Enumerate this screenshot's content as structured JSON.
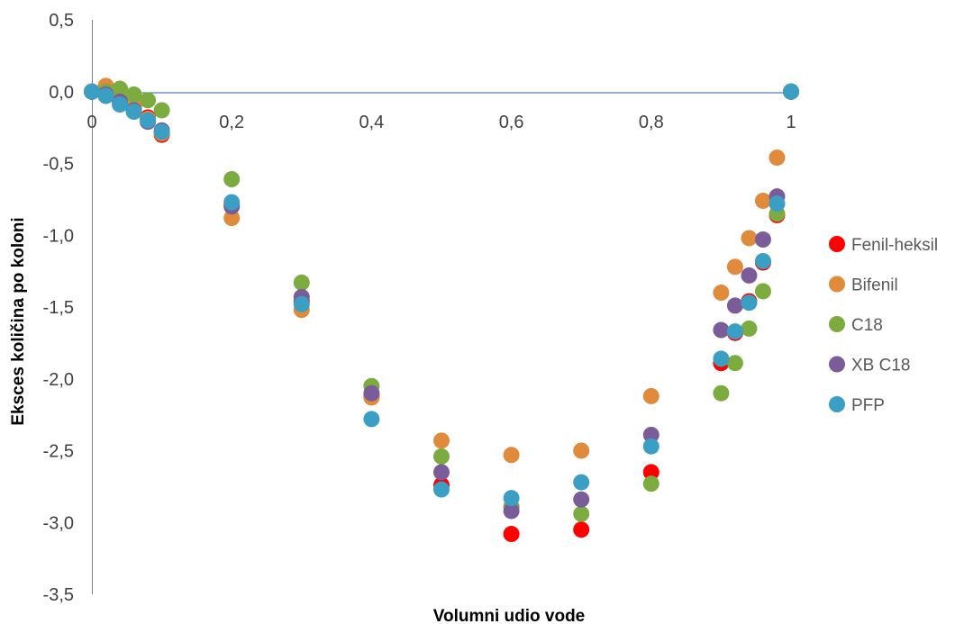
{
  "chart_data": {
    "type": "scatter",
    "title": "",
    "xlabel": "Volumni udio vode",
    "ylabel": "Eksces količina po koloni",
    "xlim": [
      0,
      1
    ],
    "ylim": [
      -3.5,
      0.5
    ],
    "x_ticks": [
      "0",
      "0,2",
      "0,4",
      "0,6",
      "0,8",
      "1"
    ],
    "y_ticks": [
      "0,5",
      "0,0",
      "-0,5",
      "-1,0",
      "-1,5",
      "-2,0",
      "-2,5",
      "-3,0",
      "-3,5"
    ],
    "legend_position": "right",
    "series": [
      {
        "name": "Fenil-heksil",
        "color": "#ff0000",
        "points": [
          [
            0,
            0
          ],
          [
            0.02,
            -0.02
          ],
          [
            0.04,
            -0.06
          ],
          [
            0.06,
            -0.11
          ],
          [
            0.08,
            -0.18
          ],
          [
            0.1,
            -0.3
          ],
          [
            0.2,
            -0.79
          ],
          [
            0.3,
            -1.46
          ],
          [
            0.4,
            -2.12
          ],
          [
            0.5,
            -2.74
          ],
          [
            0.6,
            -3.08
          ],
          [
            0.7,
            -3.05
          ],
          [
            0.8,
            -2.65
          ],
          [
            0.9,
            -1.89
          ],
          [
            0.92,
            -1.68
          ],
          [
            0.94,
            -1.46
          ],
          [
            0.96,
            -1.19
          ],
          [
            0.98,
            -0.86
          ],
          [
            1,
            0
          ]
        ]
      },
      {
        "name": "Bifenil",
        "color": "#e08a3c",
        "points": [
          [
            0,
            0
          ],
          [
            0.02,
            0.04
          ],
          [
            0.04,
            -0.06
          ],
          [
            0.06,
            -0.1
          ],
          [
            0.08,
            -0.19
          ],
          [
            0.1,
            -0.29
          ],
          [
            0.2,
            -0.88
          ],
          [
            0.3,
            -1.52
          ],
          [
            0.4,
            -2.13
          ],
          [
            0.5,
            -2.43
          ],
          [
            0.6,
            -2.53
          ],
          [
            0.7,
            -2.5
          ],
          [
            0.8,
            -2.12
          ],
          [
            0.9,
            -1.4
          ],
          [
            0.92,
            -1.22
          ],
          [
            0.94,
            -1.02
          ],
          [
            0.96,
            -0.76
          ],
          [
            0.98,
            -0.46
          ],
          [
            1,
            0
          ]
        ]
      },
      {
        "name": "C18",
        "color": "#7cab3f",
        "points": [
          [
            0,
            0
          ],
          [
            0.02,
            0
          ],
          [
            0.04,
            0.02
          ],
          [
            0.06,
            -0.02
          ],
          [
            0.08,
            -0.06
          ],
          [
            0.1,
            -0.13
          ],
          [
            0.2,
            -0.61
          ],
          [
            0.3,
            -1.33
          ],
          [
            0.4,
            -2.05
          ],
          [
            0.5,
            -2.54
          ],
          [
            0.6,
            -2.89
          ],
          [
            0.7,
            -2.94
          ],
          [
            0.8,
            -2.73
          ],
          [
            0.9,
            -2.1
          ],
          [
            0.92,
            -1.89
          ],
          [
            0.94,
            -1.65
          ],
          [
            0.96,
            -1.39
          ],
          [
            0.98,
            -0.85
          ],
          [
            1,
            0
          ]
        ]
      },
      {
        "name": "XB C18",
        "color": "#7a5c99",
        "points": [
          [
            0,
            0
          ],
          [
            0.02,
            -0.02
          ],
          [
            0.04,
            -0.07
          ],
          [
            0.06,
            -0.13
          ],
          [
            0.08,
            -0.21
          ],
          [
            0.1,
            -0.27
          ],
          [
            0.2,
            -0.8
          ],
          [
            0.3,
            -1.43
          ],
          [
            0.4,
            -2.1
          ],
          [
            0.5,
            -2.65
          ],
          [
            0.6,
            -2.92
          ],
          [
            0.7,
            -2.84
          ],
          [
            0.8,
            -2.39
          ],
          [
            0.9,
            -1.66
          ],
          [
            0.92,
            -1.49
          ],
          [
            0.94,
            -1.28
          ],
          [
            0.96,
            -1.03
          ],
          [
            0.98,
            -0.73
          ],
          [
            1,
            0
          ]
        ]
      },
      {
        "name": "PFP",
        "color": "#3b9fc4",
        "points": [
          [
            0,
            0
          ],
          [
            0.02,
            -0.03
          ],
          [
            0.04,
            -0.09
          ],
          [
            0.06,
            -0.14
          ],
          [
            0.08,
            -0.2
          ],
          [
            0.1,
            -0.28
          ],
          [
            0.2,
            -0.77
          ],
          [
            0.3,
            -1.48
          ],
          [
            0.4,
            -2.28
          ],
          [
            0.5,
            -2.77
          ],
          [
            0.6,
            -2.83
          ],
          [
            0.7,
            -2.72
          ],
          [
            0.8,
            -2.47
          ],
          [
            0.9,
            -1.86
          ],
          [
            0.92,
            -1.67
          ],
          [
            0.94,
            -1.47
          ],
          [
            0.96,
            -1.18
          ],
          [
            0.98,
            -0.78
          ],
          [
            1,
            0
          ]
        ]
      }
    ]
  }
}
